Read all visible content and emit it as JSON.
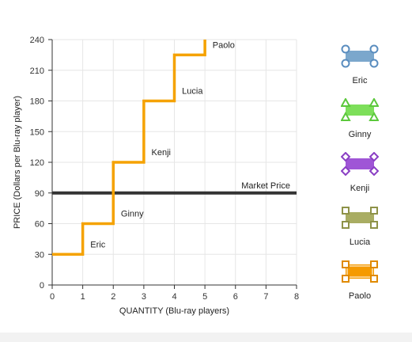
{
  "chart_data": {
    "type": "line",
    "xlabel": "QUANTITY (Blu-ray players)",
    "ylabel": "PRICE (Dollars per Blu-ray player)",
    "xlim": [
      0,
      8
    ],
    "ylim": [
      0,
      240
    ],
    "xticks": [
      0,
      1,
      2,
      3,
      4,
      5,
      6,
      7,
      8
    ],
    "yticks": [
      0,
      30,
      60,
      90,
      120,
      150,
      180,
      210,
      240
    ],
    "grid": true,
    "series": [
      {
        "color": "#f5a200",
        "x": [
          0,
          1,
          1,
          2,
          2,
          3,
          3,
          4,
          4,
          5,
          5
        ],
        "y": [
          30,
          30,
          60,
          60,
          120,
          120,
          180,
          180,
          225,
          225,
          240
        ]
      }
    ],
    "market_price": {
      "label": "Market Price",
      "value": 90,
      "color": "#333333"
    },
    "annotations": [
      {
        "text": "Eric",
        "x": 1.25,
        "y": 40
      },
      {
        "text": "Ginny",
        "x": 2.25,
        "y": 70
      },
      {
        "text": "Kenji",
        "x": 3.25,
        "y": 130
      },
      {
        "text": "Lucia",
        "x": 4.25,
        "y": 190
      },
      {
        "text": "Paolo",
        "x": 5.25,
        "y": 235
      }
    ]
  },
  "legend": [
    {
      "label": "Eric",
      "color": "#7ba7cc",
      "stroke": "#5a8dbf",
      "marker": "circle-corners"
    },
    {
      "label": "Ginny",
      "color": "#7ddf5a",
      "stroke": "#5cc83c",
      "marker": "triangle-corners"
    },
    {
      "label": "Kenji",
      "color": "#9f55d6",
      "stroke": "#8a3fc4",
      "marker": "diamond-corners"
    },
    {
      "label": "Lucia",
      "color": "#a9ad63",
      "stroke": "#8e9248",
      "marker": "square-corners"
    },
    {
      "label": "Paolo",
      "color": "#f59a00",
      "stroke": "#e08a00",
      "marker": "square-corners-outline"
    }
  ]
}
